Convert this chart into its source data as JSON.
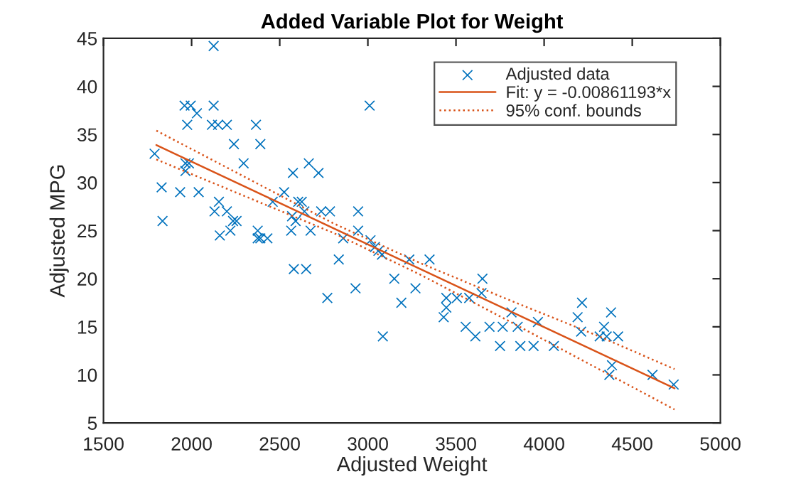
{
  "chart_data": {
    "type": "scatter",
    "title": "Added Variable Plot for Weight",
    "xlabel": "Adjusted Weight",
    "ylabel": "Adjusted MPG",
    "xlim": [
      1500,
      5000
    ],
    "xticks": [
      1500,
      2000,
      2500,
      3000,
      3500,
      4000,
      4500,
      5000
    ],
    "ylim": [
      5,
      45
    ],
    "yticks": [
      5,
      10,
      15,
      20,
      25,
      30,
      35,
      40,
      45
    ],
    "legend": "top right",
    "series": [
      {
        "name": "Adjusted data",
        "type": "scatter",
        "marker": "cross",
        "color": "#0072bd",
        "x": [
          1790,
          1830,
          1835,
          1935,
          1960,
          1995,
          1975,
          1965,
          1985,
          1965,
          2030,
          2040,
          2125,
          2125,
          2115,
          2150,
          2200,
          2130,
          2155,
          2160,
          2200,
          2220,
          2240,
          2235,
          2255,
          2295,
          2365,
          2390,
          2375,
          2375,
          2390,
          2430,
          2460,
          2525,
          2575,
          2565,
          2570,
          2590,
          2580,
          2650,
          2605,
          2625,
          2640,
          2665,
          2720,
          2675,
          2735,
          2785,
          2770,
          2860,
          2835,
          2930,
          2945,
          2945,
          3010,
          3015,
          3040,
          3060,
          3080,
          3085,
          3150,
          3190,
          3235,
          3270,
          3350,
          3430,
          3445,
          3445,
          3505,
          3555,
          3575,
          3610,
          3645,
          3650,
          3690,
          3750,
          3765,
          3815,
          3850,
          3865,
          3940,
          3965,
          4055,
          4190,
          4215,
          4210,
          4315,
          4340,
          4355,
          4380,
          4385,
          4370,
          4420,
          4615,
          4735
        ],
        "values": [
          33,
          29.5,
          26,
          29,
          38,
          38,
          36,
          32,
          32,
          31.2,
          37.2,
          29,
          44.2,
          38,
          36,
          36,
          36,
          27,
          28,
          24.5,
          27,
          25,
          34,
          26,
          26,
          32,
          36,
          34,
          25,
          24.2,
          24.2,
          24.2,
          28,
          29,
          31,
          25,
          26.5,
          26,
          21,
          21,
          28,
          28,
          27,
          32,
          31,
          25,
          27,
          27,
          18,
          24.2,
          22,
          19,
          27,
          25,
          38,
          24,
          23.3,
          22.9,
          22.5,
          14,
          20,
          17.5,
          22,
          19,
          22,
          16,
          17,
          18,
          18,
          15,
          18,
          14,
          18.5,
          20,
          15,
          13,
          15,
          16.5,
          15,
          13,
          13,
          15.5,
          13,
          16,
          17.5,
          14.5,
          14,
          15,
          14,
          16.5,
          11,
          10,
          14,
          10,
          9
        ]
      },
      {
        "name": "Fit: y = -0.00861193*x",
        "type": "line",
        "line_style": "solid",
        "marker": "none",
        "color": "#d95319",
        "x": [
          1800,
          4740
        ],
        "values": [
          33.9,
          8.6
        ]
      },
      {
        "name": "95% conf. bounds",
        "type": "line",
        "line_style": "dotted",
        "marker": "none",
        "color": "#d95319",
        "x": [
          1800,
          2300,
          2800,
          3300,
          3800,
          4300,
          4740
        ],
        "values": [
          35.4,
          30.6,
          25.8,
          21.6,
          17.8,
          14.1,
          10.6
        ]
      },
      {
        "type": "line",
        "line_style": "dotted",
        "marker": "none",
        "color": "#d95319",
        "x": [
          1800,
          2300,
          2800,
          3300,
          3800,
          4300,
          4740
        ],
        "values": [
          32.4,
          28.6,
          24.8,
          20.4,
          15.6,
          10.7,
          6.4
        ]
      }
    ]
  }
}
